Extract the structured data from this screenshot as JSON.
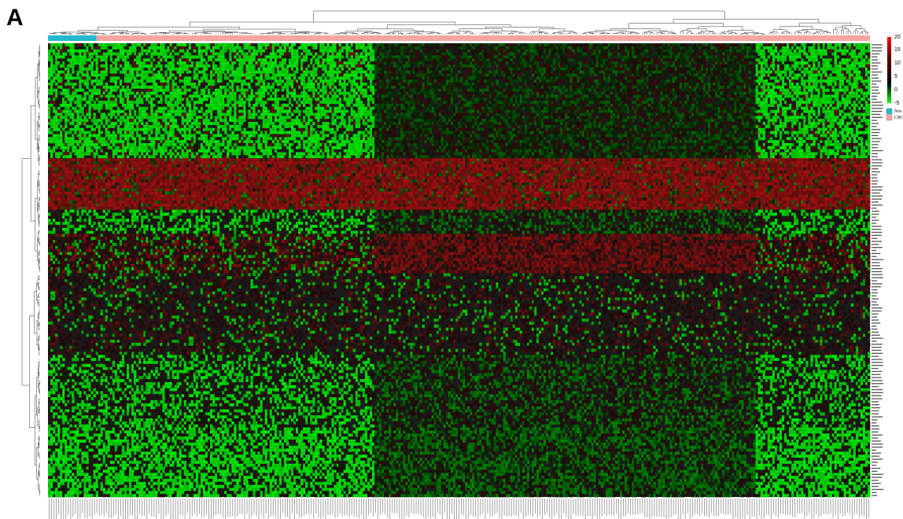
{
  "panel_label": "A",
  "chart_data": {
    "type": "heatmap",
    "title": "",
    "xlabel": "",
    "ylabel": "",
    "n_samples_approx": 345,
    "n_genes_approx": 150,
    "color_scale": {
      "min": -5,
      "max": 20,
      "ticks": [
        20,
        15,
        10,
        5,
        0,
        -5
      ],
      "colors": {
        "low": "#00ff00",
        "mid": "#000000",
        "high": "#ff0000"
      }
    },
    "sample_groups": [
      {
        "name": "Nor",
        "color": "#22b8d0",
        "approx_count": 7
      },
      {
        "name": "CRC",
        "color": "#f4a6a0",
        "approx_count": 338
      }
    ],
    "row_labels_visible": false,
    "col_labels_visible": false,
    "dendrograms": {
      "rows": true,
      "columns": true
    }
  }
}
